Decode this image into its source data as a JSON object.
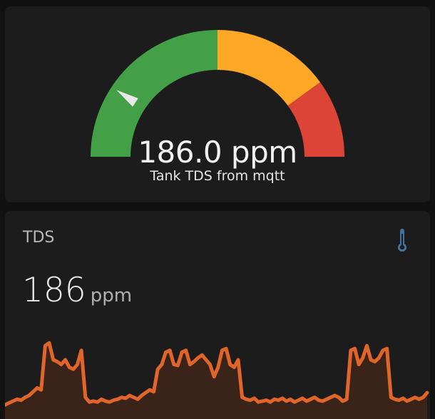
{
  "gauge": {
    "value_text": "186.0 ppm",
    "name": "Tank TDS from mqtt",
    "value": 186.0,
    "min": 0,
    "max": 1000,
    "segments": [
      {
        "from": 0,
        "to": 500,
        "color": "#43a047"
      },
      {
        "from": 500,
        "to": 800,
        "color": "#ffa726"
      },
      {
        "from": 800,
        "to": 1000,
        "color": "#db4437"
      }
    ],
    "needle_color": "#e8e8e8"
  },
  "sensor": {
    "title": "TDS",
    "icon": "thermometer-icon",
    "icon_color": "#44739e",
    "state": "186",
    "unit": "ppm",
    "line_color": "#e0652a",
    "fill_color": "#3a2318",
    "history": [
      12,
      14,
      16,
      18,
      17,
      20,
      22,
      26,
      30,
      28,
      75,
      78,
      60,
      58,
      55,
      60,
      52,
      50,
      55,
      70,
      20,
      15,
      16,
      15,
      18,
      16,
      15,
      17,
      18,
      20,
      19,
      22,
      20,
      18,
      22,
      25,
      28,
      26,
      50,
      55,
      68,
      70,
      55,
      54,
      68,
      70,
      55,
      58,
      62,
      65,
      60,
      55,
      42,
      52,
      70,
      72,
      55,
      52,
      60,
      20,
      18,
      17,
      19,
      15,
      16,
      17,
      15,
      18,
      17,
      19,
      16,
      18,
      15,
      17,
      19,
      16,
      18,
      20,
      17,
      16,
      18,
      20,
      22,
      20,
      16,
      18,
      70,
      72,
      55,
      62,
      75,
      60,
      58,
      62,
      70,
      72,
      20,
      18,
      17,
      19,
      16,
      18,
      20,
      18,
      20,
      25
    ]
  }
}
